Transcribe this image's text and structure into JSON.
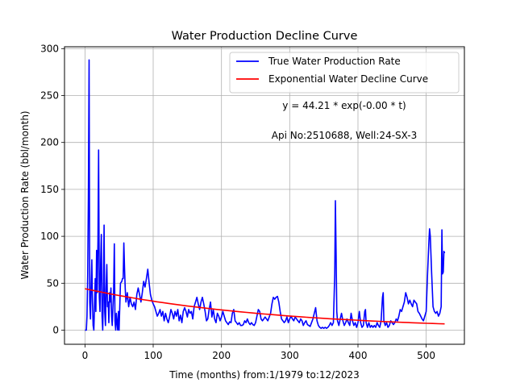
{
  "chart_data": {
    "type": "line",
    "title": "Water Production Decline Curve",
    "xlabel": "Time (months) from:1/1979 to:12/2023",
    "ylabel": "Water Production Rate (bbl/month)",
    "xlim": [
      -30,
      556
    ],
    "ylim": [
      -15,
      302
    ],
    "xticks": [
      0,
      100,
      200,
      300,
      400,
      500
    ],
    "yticks": [
      0,
      50,
      100,
      150,
      200,
      250,
      300
    ],
    "grid": true,
    "legend_position": "top-right",
    "annotations": [
      "y = 44.21 * exp(-0.00 * t)",
      "Api No:2510688, Well:24-SX-3"
    ],
    "series": [
      {
        "name": "True Water Production Rate",
        "color": "#0000ff",
        "points": [
          [
            0,
            0
          ],
          [
            2,
            0
          ],
          [
            3,
            15
          ],
          [
            4,
            60
          ],
          [
            5,
            140
          ],
          [
            6,
            288
          ],
          [
            7,
            30
          ],
          [
            8,
            12
          ],
          [
            9,
            45
          ],
          [
            10,
            75
          ],
          [
            11,
            30
          ],
          [
            12,
            5
          ],
          [
            13,
            0
          ],
          [
            14,
            25
          ],
          [
            15,
            55
          ],
          [
            16,
            20
          ],
          [
            17,
            85
          ],
          [
            18,
            40
          ],
          [
            19,
            95
          ],
          [
            20,
            192
          ],
          [
            21,
            35
          ],
          [
            22,
            20
          ],
          [
            23,
            75
          ],
          [
            24,
            102
          ],
          [
            25,
            15
          ],
          [
            26,
            0
          ],
          [
            27,
            40
          ],
          [
            28,
            112
          ],
          [
            29,
            20
          ],
          [
            30,
            5
          ],
          [
            31,
            45
          ],
          [
            32,
            70
          ],
          [
            33,
            25
          ],
          [
            34,
            30
          ],
          [
            35,
            8
          ],
          [
            36,
            40
          ],
          [
            37,
            30
          ],
          [
            38,
            45
          ],
          [
            39,
            15
          ],
          [
            40,
            5
          ],
          [
            41,
            25
          ],
          [
            42,
            40
          ],
          [
            43,
            92
          ],
          [
            44,
            10
          ],
          [
            45,
            0
          ],
          [
            46,
            18
          ],
          [
            47,
            8
          ],
          [
            48,
            0
          ],
          [
            49,
            20
          ],
          [
            50,
            0
          ],
          [
            52,
            50
          ],
          [
            54,
            52
          ],
          [
            55,
            55
          ],
          [
            56,
            55
          ],
          [
            57,
            93
          ],
          [
            58,
            65
          ],
          [
            59,
            45
          ],
          [
            60,
            30
          ],
          [
            62,
            40
          ],
          [
            64,
            25
          ],
          [
            66,
            35
          ],
          [
            68,
            28
          ],
          [
            70,
            25
          ],
          [
            72,
            30
          ],
          [
            74,
            22
          ],
          [
            76,
            38
          ],
          [
            78,
            45
          ],
          [
            80,
            38
          ],
          [
            82,
            30
          ],
          [
            84,
            40
          ],
          [
            86,
            52
          ],
          [
            88,
            46
          ],
          [
            90,
            55
          ],
          [
            92,
            65
          ],
          [
            94,
            50
          ],
          [
            96,
            38
          ],
          [
            98,
            32
          ],
          [
            100,
            28
          ],
          [
            102,
            25
          ],
          [
            104,
            20
          ],
          [
            106,
            15
          ],
          [
            108,
            18
          ],
          [
            110,
            22
          ],
          [
            112,
            15
          ],
          [
            114,
            20
          ],
          [
            116,
            10
          ],
          [
            118,
            18
          ],
          [
            120,
            12
          ],
          [
            122,
            8
          ],
          [
            124,
            14
          ],
          [
            126,
            22
          ],
          [
            128,
            18
          ],
          [
            130,
            12
          ],
          [
            132,
            20
          ],
          [
            134,
            15
          ],
          [
            136,
            22
          ],
          [
            138,
            10
          ],
          [
            140,
            16
          ],
          [
            142,
            8
          ],
          [
            144,
            20
          ],
          [
            146,
            24
          ],
          [
            148,
            20
          ],
          [
            150,
            14
          ],
          [
            152,
            22
          ],
          [
            154,
            18
          ],
          [
            156,
            20
          ],
          [
            158,
            12
          ],
          [
            160,
            25
          ],
          [
            162,
            30
          ],
          [
            164,
            35
          ],
          [
            166,
            28
          ],
          [
            168,
            22
          ],
          [
            170,
            30
          ],
          [
            172,
            35
          ],
          [
            174,
            28
          ],
          [
            176,
            20
          ],
          [
            178,
            10
          ],
          [
            180,
            12
          ],
          [
            182,
            22
          ],
          [
            184,
            30
          ],
          [
            186,
            14
          ],
          [
            188,
            22
          ],
          [
            190,
            12
          ],
          [
            192,
            8
          ],
          [
            194,
            18
          ],
          [
            196,
            15
          ],
          [
            198,
            10
          ],
          [
            200,
            14
          ],
          [
            202,
            20
          ],
          [
            204,
            15
          ],
          [
            206,
            10
          ],
          [
            208,
            8
          ],
          [
            210,
            6
          ],
          [
            212,
            9
          ],
          [
            214,
            8
          ],
          [
            216,
            18
          ],
          [
            218,
            22
          ],
          [
            220,
            10
          ],
          [
            222,
            8
          ],
          [
            224,
            6
          ],
          [
            226,
            8
          ],
          [
            228,
            5
          ],
          [
            230,
            5
          ],
          [
            232,
            6
          ],
          [
            234,
            10
          ],
          [
            236,
            8
          ],
          [
            238,
            12
          ],
          [
            240,
            8
          ],
          [
            242,
            6
          ],
          [
            244,
            8
          ],
          [
            246,
            6
          ],
          [
            248,
            5
          ],
          [
            250,
            8
          ],
          [
            252,
            15
          ],
          [
            254,
            22
          ],
          [
            256,
            20
          ],
          [
            258,
            12
          ],
          [
            260,
            10
          ],
          [
            262,
            12
          ],
          [
            264,
            14
          ],
          [
            266,
            12
          ],
          [
            268,
            10
          ],
          [
            270,
            14
          ],
          [
            272,
            18
          ],
          [
            274,
            28
          ],
          [
            276,
            35
          ],
          [
            278,
            33
          ],
          [
            280,
            35
          ],
          [
            282,
            36
          ],
          [
            284,
            30
          ],
          [
            286,
            20
          ],
          [
            288,
            12
          ],
          [
            290,
            10
          ],
          [
            292,
            8
          ],
          [
            294,
            10
          ],
          [
            296,
            14
          ],
          [
            298,
            8
          ],
          [
            300,
            12
          ],
          [
            302,
            15
          ],
          [
            304,
            12
          ],
          [
            306,
            10
          ],
          [
            308,
            14
          ],
          [
            310,
            12
          ],
          [
            312,
            10
          ],
          [
            314,
            8
          ],
          [
            316,
            12
          ],
          [
            318,
            10
          ],
          [
            320,
            5
          ],
          [
            322,
            8
          ],
          [
            324,
            10
          ],
          [
            326,
            6
          ],
          [
            328,
            5
          ],
          [
            330,
            4
          ],
          [
            332,
            8
          ],
          [
            334,
            12
          ],
          [
            336,
            18
          ],
          [
            338,
            24
          ],
          [
            340,
            10
          ],
          [
            342,
            5
          ],
          [
            344,
            3
          ],
          [
            346,
            2
          ],
          [
            348,
            3
          ],
          [
            350,
            2
          ],
          [
            352,
            3
          ],
          [
            354,
            2
          ],
          [
            356,
            3
          ],
          [
            358,
            5
          ],
          [
            360,
            8
          ],
          [
            362,
            5
          ],
          [
            364,
            8
          ],
          [
            366,
            60
          ],
          [
            367,
            138
          ],
          [
            368,
            80
          ],
          [
            369,
            20
          ],
          [
            370,
            10
          ],
          [
            372,
            5
          ],
          [
            374,
            12
          ],
          [
            376,
            18
          ],
          [
            378,
            10
          ],
          [
            380,
            5
          ],
          [
            382,
            8
          ],
          [
            384,
            12
          ],
          [
            386,
            8
          ],
          [
            388,
            5
          ],
          [
            390,
            18
          ],
          [
            392,
            10
          ],
          [
            394,
            5
          ],
          [
            396,
            8
          ],
          [
            398,
            3
          ],
          [
            400,
            8
          ],
          [
            402,
            20
          ],
          [
            404,
            8
          ],
          [
            406,
            3
          ],
          [
            408,
            5
          ],
          [
            410,
            20
          ],
          [
            411,
            22
          ],
          [
            412,
            8
          ],
          [
            414,
            3
          ],
          [
            416,
            8
          ],
          [
            418,
            3
          ],
          [
            420,
            5
          ],
          [
            422,
            3
          ],
          [
            424,
            5
          ],
          [
            426,
            3
          ],
          [
            428,
            8
          ],
          [
            430,
            5
          ],
          [
            432,
            3
          ],
          [
            434,
            10
          ],
          [
            436,
            35
          ],
          [
            437,
            40
          ],
          [
            438,
            10
          ],
          [
            440,
            5
          ],
          [
            442,
            8
          ],
          [
            444,
            3
          ],
          [
            446,
            5
          ],
          [
            448,
            10
          ],
          [
            450,
            8
          ],
          [
            452,
            6
          ],
          [
            454,
            8
          ],
          [
            456,
            12
          ],
          [
            458,
            10
          ],
          [
            460,
            15
          ],
          [
            462,
            22
          ],
          [
            464,
            20
          ],
          [
            466,
            25
          ],
          [
            468,
            30
          ],
          [
            470,
            40
          ],
          [
            472,
            35
          ],
          [
            474,
            28
          ],
          [
            476,
            32
          ],
          [
            478,
            28
          ],
          [
            480,
            25
          ],
          [
            482,
            32
          ],
          [
            484,
            30
          ],
          [
            486,
            28
          ],
          [
            488,
            20
          ],
          [
            490,
            18
          ],
          [
            492,
            15
          ],
          [
            494,
            12
          ],
          [
            496,
            10
          ],
          [
            498,
            15
          ],
          [
            500,
            20
          ],
          [
            502,
            60
          ],
          [
            504,
            95
          ],
          [
            505,
            108
          ],
          [
            506,
            100
          ],
          [
            508,
            60
          ],
          [
            510,
            25
          ],
          [
            512,
            20
          ],
          [
            514,
            18
          ],
          [
            516,
            20
          ],
          [
            518,
            15
          ],
          [
            520,
            18
          ],
          [
            522,
            25
          ],
          [
            523,
            107
          ],
          [
            524,
            60
          ],
          [
            525,
            62
          ],
          [
            526,
            84
          ],
          [
            527,
            82
          ]
        ]
      },
      {
        "name": "Exponential Water Decline Curve",
        "color": "#ff0000",
        "model": {
          "a": 44.21,
          "b": 0.00358
        },
        "x_range": [
          0,
          527
        ],
        "style": "smooth"
      }
    ]
  }
}
